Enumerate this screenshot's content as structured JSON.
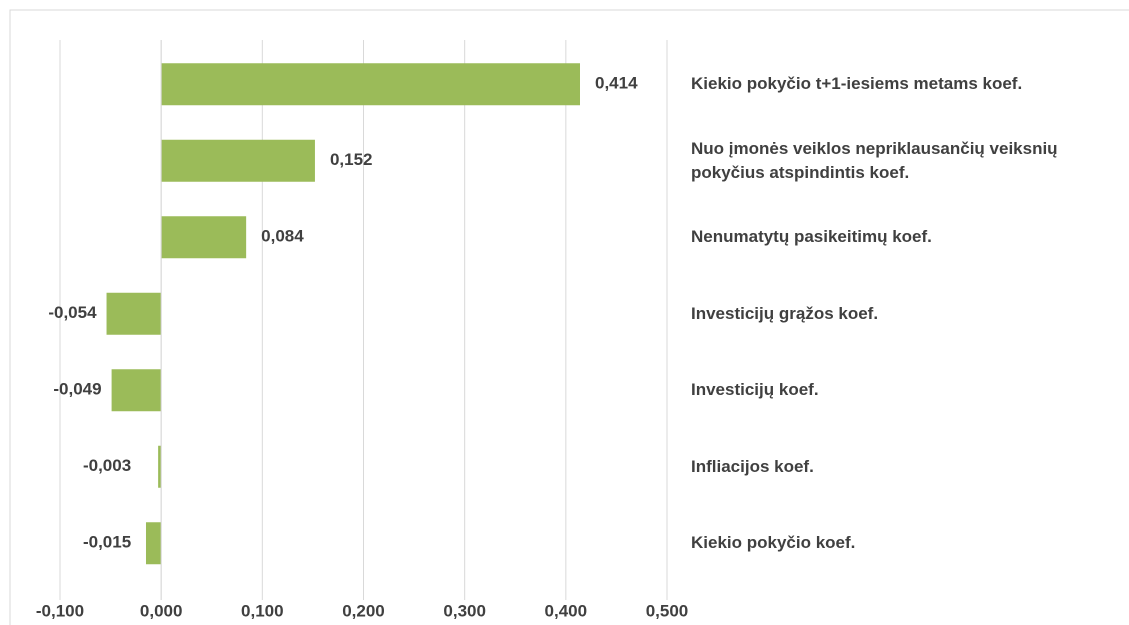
{
  "chart_data": {
    "type": "hbar",
    "categories": [
      "Kiekio pokyčio t+1-iesiems metams  koef.",
      "Nuo įmonės veiklos nepriklausančių veiksnių pokyčius atspindintis  koef.",
      "Nenumatytų pasikeitimų  koef.",
      "Investicijų grąžos  koef.",
      "Investicijų koef.",
      "Infliacijos  koef.",
      "Kiekio pokyčio koef."
    ],
    "values": [
      0.414,
      0.152,
      0.084,
      -0.054,
      -0.049,
      -0.003,
      -0.015
    ],
    "value_labels": [
      "0,414",
      "0,152",
      "0,084",
      "-0,054",
      "-0,049",
      "-0,003",
      "-0,015"
    ],
    "color": "#9bbb59",
    "xlim": [
      -0.1,
      0.5
    ],
    "xticks": [
      {
        "value": -0.1,
        "label": "-0,100"
      },
      {
        "value": 0,
        "label": "0,000"
      },
      {
        "value": 0.1,
        "label": "0,100"
      },
      {
        "value": 0.2,
        "label": "0,200"
      },
      {
        "value": 0.3,
        "label": "0,300"
      },
      {
        "value": 0.4,
        "label": "0,400"
      },
      {
        "value": 0.5,
        "label": "0,500"
      }
    ],
    "grid": true
  }
}
